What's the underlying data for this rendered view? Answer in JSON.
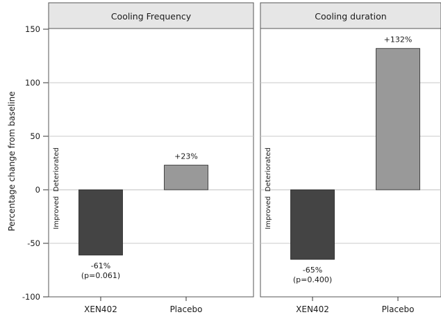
{
  "chart_data": {
    "type": "bar",
    "ylabel": "Percentage change from baseline",
    "ylim": [
      -100,
      150
    ],
    "yticks": [
      150,
      100,
      50,
      0,
      -50,
      -100
    ],
    "grid": true,
    "direction_labels": {
      "positive": "Deteriorated",
      "negative": "Improved"
    },
    "colors": {
      "XEN402": "#444444",
      "Placebo": "#999999",
      "panel_header": "#e6e6e6",
      "grid": "#c8c8c8"
    },
    "panels": [
      {
        "title": "Cooling Frequency",
        "categories": [
          "XEN402",
          "Placebo"
        ],
        "values": [
          -61,
          23
        ],
        "labels": [
          [
            "-61%",
            "(p=0.061)"
          ],
          [
            "+23%"
          ]
        ]
      },
      {
        "title": "Cooling duration",
        "categories": [
          "XEN402",
          "Placebo"
        ],
        "values": [
          -65,
          132
        ],
        "labels": [
          [
            "-65%",
            "(p=0.400)"
          ],
          [
            "+132%"
          ]
        ]
      }
    ]
  }
}
